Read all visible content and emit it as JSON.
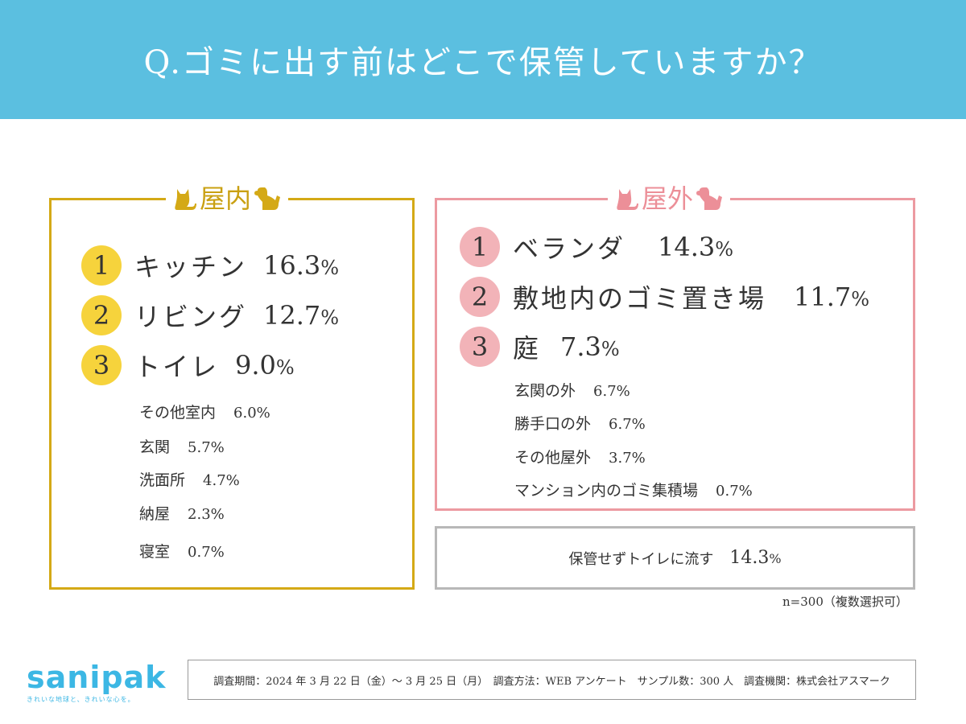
{
  "header": {
    "title": "Q.ゴミに出す前はどこで保管していますか？"
  },
  "colors": {
    "header_bg": "#5bbfe0",
    "indoor_accent": "#f6d33c",
    "indoor_border": "#d4a916",
    "outdoor_accent": "#f2b3b8",
    "outdoor_border": "#ec9aa1",
    "neutral_border": "#b8b8b8",
    "logo": "#3cb7e4"
  },
  "indoor": {
    "label": "屋内",
    "top": [
      {
        "rank": "1",
        "label": "キッチン",
        "value": "16.3",
        "unit": "%"
      },
      {
        "rank": "2",
        "label": "リビング",
        "value": "12.7",
        "unit": "%"
      },
      {
        "rank": "3",
        "label": "トイレ",
        "value": "9.0",
        "unit": "%"
      }
    ],
    "others": [
      {
        "label": "その他室内",
        "pct": "6.0%"
      },
      {
        "label": "玄関",
        "pct": "5.7%"
      },
      {
        "label": "洗面所",
        "pct": "4.7%"
      },
      {
        "label": "納屋",
        "pct": "2.3%"
      },
      {
        "label": "寝室",
        "pct": "0.7%"
      }
    ]
  },
  "outdoor": {
    "label": "屋外",
    "top": [
      {
        "rank": "1",
        "label": "ベランダ",
        "value": "14.3",
        "unit": "%"
      },
      {
        "rank": "2",
        "label": "敷地内のゴミ置き場",
        "value": "11.7",
        "unit": "%"
      },
      {
        "rank": "3",
        "label": "庭",
        "value": "7.3",
        "unit": "%"
      }
    ],
    "others": [
      {
        "label": "玄関の外",
        "pct": "6.7%"
      },
      {
        "label": "勝手口の外",
        "pct": "6.7%"
      },
      {
        "label": "その他屋外",
        "pct": "3.7%"
      },
      {
        "label": "マンション内のゴミ集積場",
        "pct": "0.7%"
      }
    ]
  },
  "no_storage": {
    "label": "保管せずトイレに流す",
    "value": "14.3",
    "unit": "%"
  },
  "sample_note": "n=300（複数選択可）",
  "logo": {
    "name": "sanipak",
    "tagline": "きれいな地球と、きれいな心を。"
  },
  "survey_info": "調査期間：2024 年 3 月 22 日（金）〜 3 月 25 日（月）　調査方法：WEB アンケート　サンプル数：300 人　調査機関：株式会社アスマーク",
  "chart_data": {
    "type": "table",
    "title": "Q.ゴミに出す前はどこで保管していますか？",
    "unit": "%",
    "categories": {
      "屋内": [
        {
          "label": "キッチン",
          "value": 16.3
        },
        {
          "label": "リビング",
          "value": 12.7
        },
        {
          "label": "トイレ",
          "value": 9.0
        },
        {
          "label": "その他室内",
          "value": 6.0
        },
        {
          "label": "玄関",
          "value": 5.7
        },
        {
          "label": "洗面所",
          "value": 4.7
        },
        {
          "label": "納屋",
          "value": 2.3
        },
        {
          "label": "寝室",
          "value": 0.7
        }
      ],
      "屋外": [
        {
          "label": "ベランダ",
          "value": 14.3
        },
        {
          "label": "敷地内のゴミ置き場",
          "value": 11.7
        },
        {
          "label": "庭",
          "value": 7.3
        },
        {
          "label": "玄関の外",
          "value": 6.7
        },
        {
          "label": "勝手口の外",
          "value": 6.7
        },
        {
          "label": "その他屋外",
          "value": 3.7
        },
        {
          "label": "マンション内のゴミ集積場",
          "value": 0.7
        }
      ],
      "その他": [
        {
          "label": "保管せずトイレに流す",
          "value": 14.3
        }
      ]
    },
    "note": "n=300（複数選択可）"
  }
}
